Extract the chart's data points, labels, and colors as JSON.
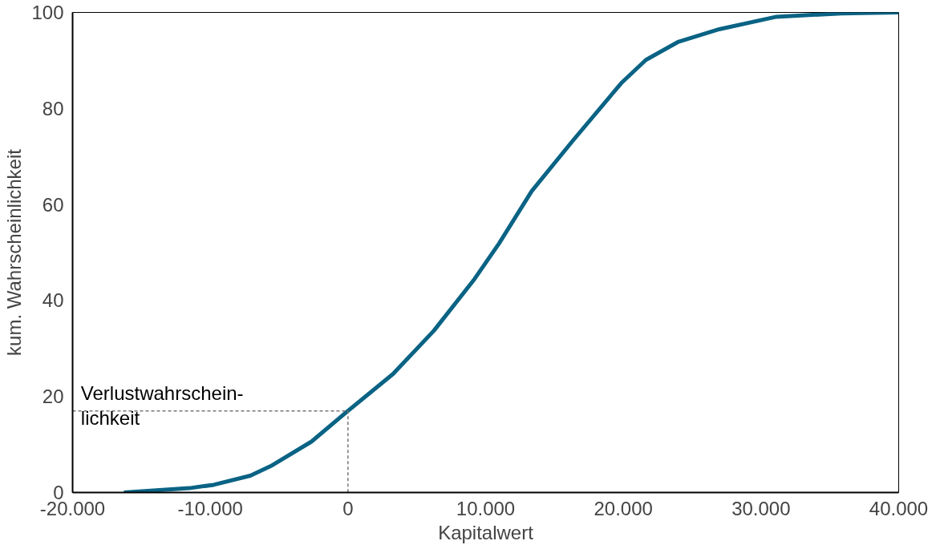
{
  "chart_data": {
    "type": "line",
    "xlabel": "Kapitalwert",
    "ylabel": "kum. Wahrscheinlichkeit",
    "xlim": [
      -20000,
      40000
    ],
    "xticks": [
      {
        "value": -20000,
        "label": "-20.000"
      },
      {
        "value": -10000,
        "label": "-10.000"
      },
      0,
      {
        "value": 10000,
        "label": "10.000"
      },
      {
        "value": 20000,
        "label": "20.000"
      },
      {
        "value": 30000,
        "label": "30.000"
      },
      {
        "value": 40000,
        "label": "40.000"
      }
    ],
    "ylim": [
      0,
      100
    ],
    "yticks": [
      0,
      20,
      40,
      60,
      80,
      100
    ],
    "grid": false,
    "line_style": "solid",
    "marker": "none",
    "series": [
      {
        "color": "#0a6384",
        "x": [
          -16270,
          -11530,
          -9750,
          -7090,
          -5610,
          -2650,
          0,
          3280,
          6240,
          9200,
          10980,
          13350,
          16310,
          19860,
          21640,
          24010,
          26970,
          31120,
          35850,
          40000
        ],
        "values": [
          0,
          0.9,
          1.6,
          3.5,
          5.5,
          10.6,
          17,
          24.7,
          33.7,
          44.5,
          51.9,
          62.8,
          73.2,
          85.3,
          90.1,
          93.9,
          96.5,
          99.1,
          99.8,
          100
        ]
      },
      {
        "color": "#777777",
        "line_style": "dashed",
        "x": [
          -20000,
          0,
          0
        ],
        "values": [
          17,
          17,
          0
        ]
      }
    ],
    "annotations": [
      "Verlustwahrschein-\nlichkeit"
    ]
  }
}
